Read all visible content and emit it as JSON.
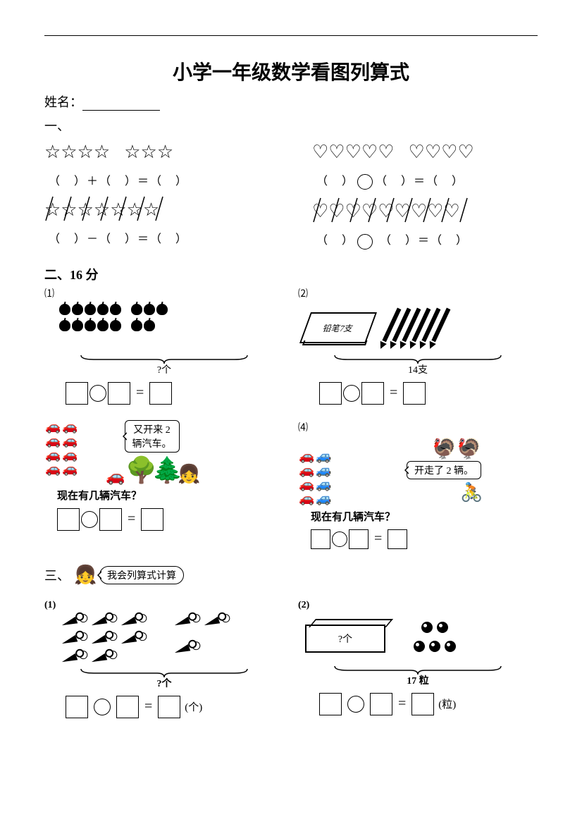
{
  "title": "小学一年级数学看图列算式",
  "name_label": "姓名：",
  "sections": {
    "one": "一、",
    "two": "二、16 分",
    "three": "三、"
  },
  "section1": {
    "stars_left_group1": 4,
    "stars_left_group2": 3,
    "eq_left_top": "（ ）＋（ ）＝（ ）",
    "stars_bottom_total": 7,
    "stars_bottom_slashed": 7,
    "eq_left_bottom": "（ ）－（ ）＝（ ）",
    "hearts_right_group1": 5,
    "hearts_right_group2": 4,
    "eq_right_top_a": "（ ）",
    "eq_right_top_b": "（ ）＝（ ）",
    "hearts_bottom_total": 9,
    "hearts_bottom_slashed": 9,
    "eq_right_bottom_a": "（ ）",
    "eq_right_bottom_b": "（ ）＝（ ）"
  },
  "section2": {
    "p1": {
      "num": "⑴",
      "apples_row1_g1": 5,
      "apples_row1_g2": 3,
      "apples_row2_g1": 5,
      "apples_row2_g2": 2,
      "brace_label": "?个"
    },
    "p2": {
      "num": "⑵",
      "notebook_text": "铅笔7支",
      "pencil_count": 6,
      "brace_label": "14支"
    },
    "p3": {
      "cars": 8,
      "speech": "又开来 2\n辆汽车。",
      "question": "现在有几辆汽车？"
    },
    "p4": {
      "num": "⑷",
      "cars": 8,
      "speech": "开走了 2 辆。",
      "question": "现在有几辆汽车？"
    }
  },
  "section3": {
    "speech": "我会列算式计算",
    "p1": {
      "num": "(1)",
      "carrots_g1": 8,
      "carrots_g2": 3,
      "brace_label": "?个",
      "unit": "(个)"
    },
    "p2": {
      "num": "(2)",
      "box_label": "?个",
      "beads": 5,
      "brace_label": "17 粒",
      "unit": "(粒)"
    }
  },
  "style": {
    "font_title_size": 28,
    "font_body_size": 18,
    "color_text": "#000000",
    "color_bg": "#ffffff"
  }
}
